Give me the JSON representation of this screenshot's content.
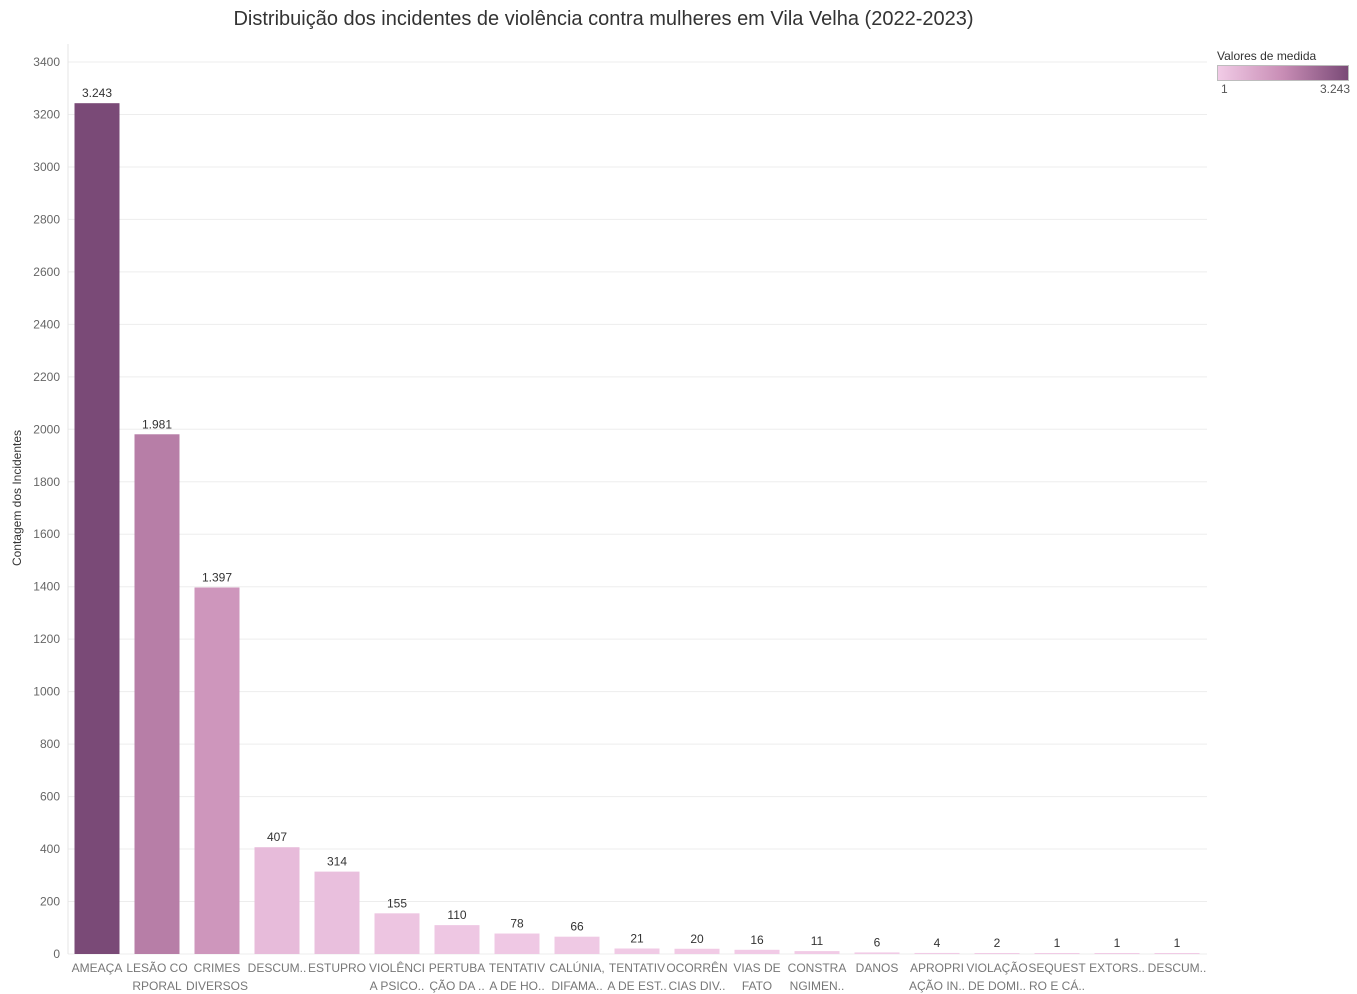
{
  "chart_data": {
    "type": "bar",
    "title": "Distribuição dos incidentes de violência contra mulheres em Vila Velha (2022-2023)",
    "xlabel": "",
    "ylabel": "Contagem dos Incidentes",
    "ylim": [
      0,
      3400
    ],
    "yticks": [
      0,
      200,
      400,
      600,
      800,
      1000,
      1200,
      1400,
      1600,
      1800,
      2000,
      2200,
      2400,
      2600,
      2800,
      3000,
      3200,
      3400
    ],
    "grid": true,
    "categories": [
      [
        "AMEAÇA"
      ],
      [
        "LESÃO CO",
        "RPORAL"
      ],
      [
        "CRIMES",
        "DIVERSOS"
      ],
      [
        "DESCUM.."
      ],
      [
        "ESTUPRO"
      ],
      [
        "VIOLÊNCI",
        "A PSICO.."
      ],
      [
        "PERTUBA",
        "ÇÃO DA .."
      ],
      [
        "TENTATIV",
        "A DE HO.."
      ],
      [
        "CALÚNIA,",
        "DIFAMA.."
      ],
      [
        "TENTATIV",
        "A DE EST.."
      ],
      [
        "OCORRÊN",
        "CIAS DIV.."
      ],
      [
        "VIAS DE",
        "FATO"
      ],
      [
        "CONSTRA",
        "NGIMEN.."
      ],
      [
        "DANOS"
      ],
      [
        "APROPRI",
        "AÇÃO IN.."
      ],
      [
        "VIOLAÇÃO",
        "DE DOMI.."
      ],
      [
        "SEQUEST",
        "RO E CÁ.."
      ],
      [
        "EXTORS.."
      ],
      [
        "DESCUM.."
      ]
    ],
    "values": [
      3243,
      1981,
      1397,
      407,
      314,
      155,
      110,
      78,
      66,
      21,
      20,
      16,
      11,
      6,
      4,
      2,
      1,
      1,
      1
    ],
    "value_labels": [
      "3.243",
      "1.981",
      "1.397",
      "407",
      "314",
      "155",
      "110",
      "78",
      "66",
      "21",
      "20",
      "16",
      "11",
      "6",
      "4",
      "2",
      "1",
      "1",
      "1"
    ],
    "color_scale": {
      "min_color": "#f1cbe6",
      "max_color": "#7a4a77",
      "mid_color": "#c88db5"
    },
    "legend": {
      "title": "Valores de medida",
      "min_label": "1",
      "max_label": "3.243",
      "min": 1,
      "max": 3243,
      "placement": "top-right"
    }
  }
}
